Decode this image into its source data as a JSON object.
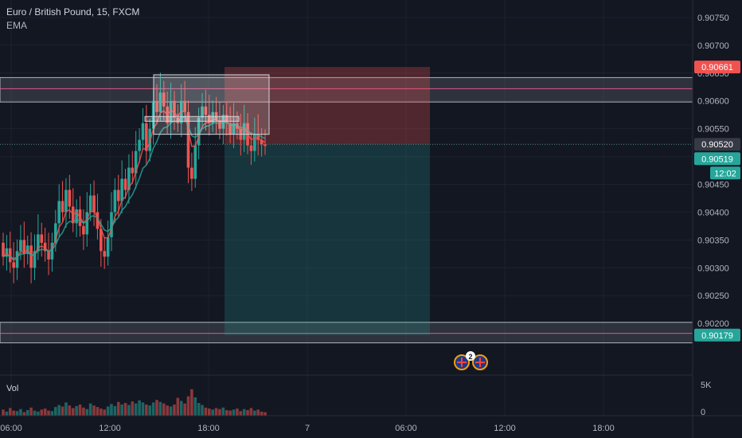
{
  "legend": {
    "symbol": "Euro / British Pound, 15, FXCM",
    "indicator": "EMA"
  },
  "colors": {
    "background": "#131722",
    "grid": "#1e222d",
    "up": "#26a69a",
    "down": "#ef5350",
    "ema_fast": "#ef5350",
    "ema_slow": "#26a69a",
    "stop_zone": "#5a2a30",
    "target_zone": "#163b3b",
    "zone_gray": "#787b86",
    "zone_line": "#e0568a",
    "axis_text": "#b2b5be",
    "current_label": "#26a69a",
    "stop_label": "#ef5350",
    "last_close_label": "#363a45"
  },
  "price_axis": {
    "min": 0.9014,
    "max": 0.9077,
    "ticks": [
      "0.90750",
      "0.90700",
      "0.90650",
      "0.90600",
      "0.90550",
      "0.90500",
      "0.90450",
      "0.90400",
      "0.90350",
      "0.90300",
      "0.90250",
      "0.90200"
    ]
  },
  "time_axis": {
    "ticks": [
      "06:00",
      "12:00",
      "18:00",
      "7",
      "06:00",
      "12:00",
      "18:00"
    ]
  },
  "volume_pane": {
    "label": "Vol",
    "ticks": [
      "5K",
      "0"
    ]
  },
  "labels": {
    "stop_price": "0.90661",
    "last_close": "0.90520",
    "current_price": "0.90519",
    "countdown": "12:02",
    "support_price": "0.90179",
    "event_count": "2"
  },
  "chart_data": {
    "type": "candlestick",
    "timeframe": "15",
    "symbol": "EURGBP",
    "x_range": [
      "06:00",
      "20:00"
    ],
    "y_range": [
      0.9014,
      0.9077
    ],
    "open": [
      0.90345,
      0.9032,
      0.90335,
      0.9031,
      0.903,
      0.9033,
      0.9035,
      0.90325,
      0.9034,
      0.903,
      0.9033,
      0.9036,
      0.90345,
      0.9033,
      0.90315,
      0.90345,
      0.9038,
      0.9042,
      0.904,
      0.9044,
      0.9041,
      0.9038,
      0.90405,
      0.90375,
      0.9036,
      0.904,
      0.9043,
      0.904,
      0.9037,
      0.9033,
      0.9032,
      0.90355,
      0.904,
      0.9044,
      0.9042,
      0.9046,
      0.9044,
      0.9048,
      0.9047,
      0.9051,
      0.9053,
      0.9056,
      0.9051,
      0.9055,
      0.906,
      0.9058,
      0.90615,
      0.9059,
      0.9056,
      0.906,
      0.9057,
      0.9056,
      0.906,
      0.9058,
      0.9048,
      0.9046,
      0.9052,
      0.9057,
      0.9059,
      0.90575,
      0.9056,
      0.9058,
      0.90565,
      0.9055,
      0.90575,
      0.9056,
      0.9054,
      0.9056,
      0.9055,
      0.9053,
      0.9056,
      0.9052,
      0.9051,
      0.9054,
      0.9053,
      0.90522
    ],
    "close": [
      0.9032,
      0.90335,
      0.9031,
      0.903,
      0.9033,
      0.9035,
      0.90325,
      0.9034,
      0.903,
      0.9033,
      0.9036,
      0.90345,
      0.9033,
      0.90315,
      0.90345,
      0.9038,
      0.9042,
      0.904,
      0.9044,
      0.9041,
      0.9038,
      0.90405,
      0.90375,
      0.9036,
      0.904,
      0.9043,
      0.904,
      0.9037,
      0.9033,
      0.9032,
      0.90355,
      0.904,
      0.9044,
      0.9042,
      0.9046,
      0.9044,
      0.9048,
      0.9047,
      0.9051,
      0.9053,
      0.9056,
      0.9051,
      0.9055,
      0.906,
      0.9058,
      0.90615,
      0.9059,
      0.9056,
      0.906,
      0.9057,
      0.9056,
      0.906,
      0.9058,
      0.9048,
      0.9046,
      0.9052,
      0.9057,
      0.9059,
      0.90575,
      0.9056,
      0.9058,
      0.90565,
      0.9055,
      0.90575,
      0.9056,
      0.9054,
      0.9056,
      0.9055,
      0.9053,
      0.9056,
      0.9052,
      0.9051,
      0.9054,
      0.9053,
      0.90522,
      0.90519
    ],
    "volume_k": [
      1.2,
      0.8,
      1.5,
      1.0,
      0.9,
      1.3,
      0.7,
      1.1,
      1.6,
      1.0,
      0.8,
      1.2,
      1.4,
      1.0,
      0.9,
      1.7,
      2.1,
      1.8,
      2.6,
      2.0,
      1.5,
      1.9,
      2.2,
      1.6,
      1.3,
      2.4,
      2.0,
      1.7,
      1.4,
      1.2,
      1.8,
      2.3,
      1.9,
      2.7,
      2.2,
      2.5,
      2.1,
      2.8,
      2.4,
      3.0,
      2.6,
      2.2,
      2.0,
      2.6,
      3.1,
      2.7,
      2.4,
      2.0,
      1.8,
      2.2,
      3.5,
      2.9,
      2.4,
      3.8,
      5.2,
      3.6,
      2.5,
      2.1,
      1.6,
      1.4,
      1.2,
      1.5,
      1.3,
      1.6,
      1.1,
      1.0,
      1.2,
      1.4,
      0.9,
      1.3,
      1.1,
      1.5,
      1.0,
      1.2,
      0.8,
      0.7
    ],
    "position": {
      "type": "short",
      "entry": 0.90522,
      "stop": 0.90661,
      "target": 0.90179,
      "start_time": "18:00",
      "end_time": "07:30"
    },
    "zones": [
      {
        "top": 0.90642,
        "bottom": 0.90598
      },
      {
        "top": 0.90202,
        "bottom": 0.90165
      }
    ],
    "consolidation_boxes": [
      {
        "from_time": "14:30",
        "to_time": "18:45",
        "top": 0.90647,
        "bottom": 0.9054
      },
      {
        "from_time": "14:15",
        "to_time": "18:15",
        "top": 0.90572,
        "bottom": 0.90565
      }
    ],
    "ema": true,
    "event_markers": [
      {
        "time": "09:45",
        "region": "GB"
      },
      {
        "time": "10:15",
        "region": "GB"
      }
    ]
  }
}
